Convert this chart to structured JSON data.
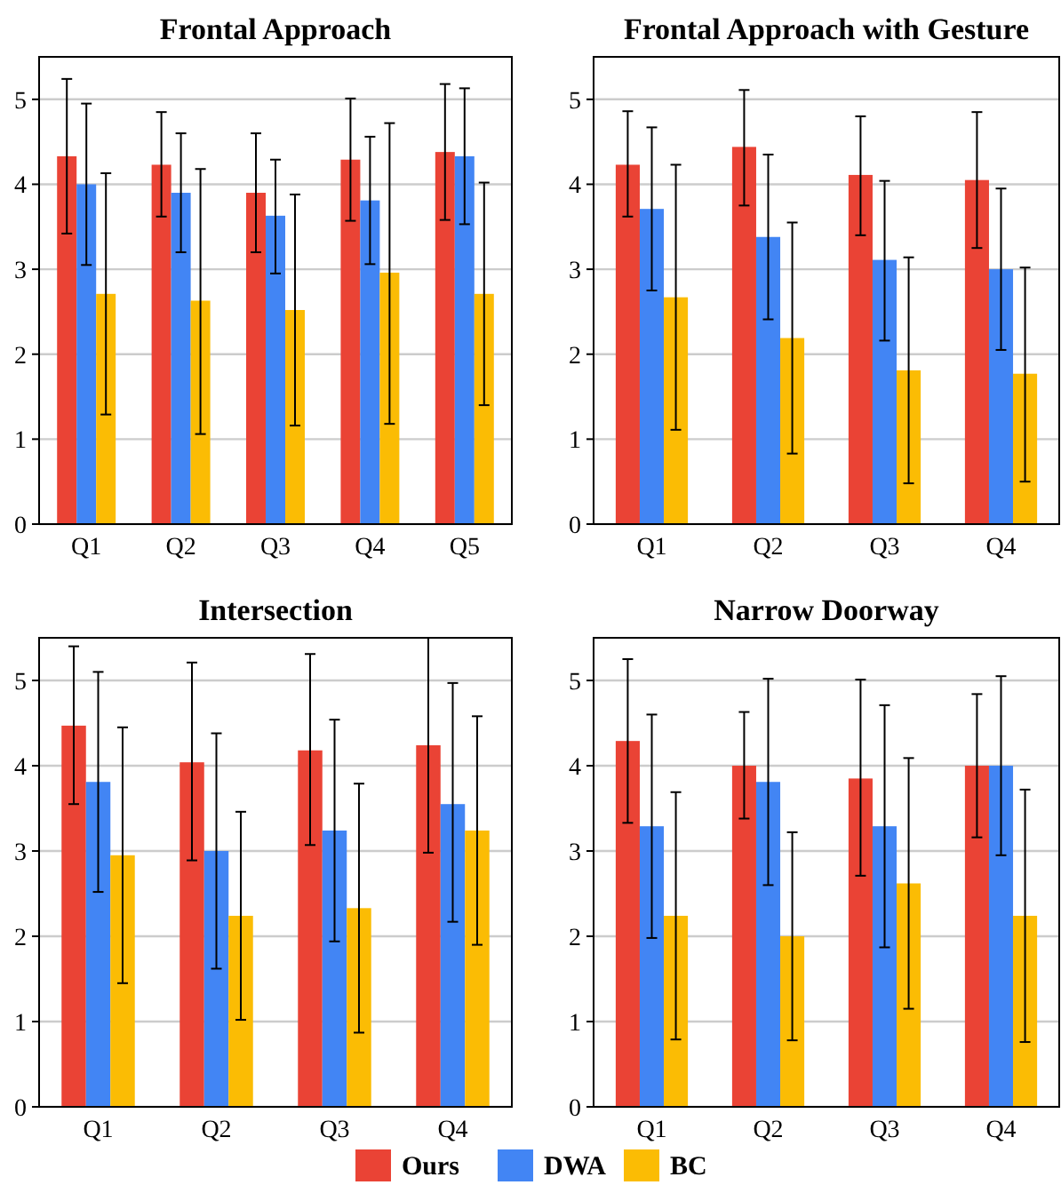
{
  "chart_data": [
    {
      "type": "bar",
      "title": "Frontal Approach",
      "categories": [
        "Q1",
        "Q2",
        "Q3",
        "Q4",
        "Q5"
      ],
      "ylim": [
        0,
        5.5
      ],
      "yticks": [
        0,
        1,
        2,
        3,
        4,
        5
      ],
      "grid": "y",
      "series": [
        {
          "color": "#ea4335",
          "values": [
            4.33,
            4.23,
            3.9,
            4.29,
            4.38
          ],
          "errors": [
            [
              3.42,
              5.24
            ],
            [
              3.62,
              4.85
            ],
            [
              3.2,
              4.6
            ],
            [
              3.57,
              5.01
            ],
            [
              3.58,
              5.18
            ]
          ]
        },
        {
          "color": "#4285f4",
          "values": [
            4.0,
            3.9,
            3.63,
            3.81,
            4.33
          ],
          "errors": [
            [
              3.05,
              4.95
            ],
            [
              3.2,
              4.6
            ],
            [
              2.95,
              4.29
            ],
            [
              3.06,
              4.56
            ],
            [
              3.53,
              5.13
            ]
          ]
        },
        {
          "color": "#fbbc04",
          "values": [
            2.71,
            2.63,
            2.52,
            2.96,
            2.71
          ],
          "errors": [
            [
              1.29,
              4.13
            ],
            [
              1.06,
              4.18
            ],
            [
              1.16,
              3.88
            ],
            [
              1.18,
              4.72
            ],
            [
              1.4,
              4.02
            ]
          ]
        }
      ]
    },
    {
      "type": "bar",
      "title": "Frontal Approach with Gesture",
      "categories": [
        "Q1",
        "Q2",
        "Q3",
        "Q4"
      ],
      "ylim": [
        0,
        5.5
      ],
      "yticks": [
        0,
        1,
        2,
        3,
        4,
        5
      ],
      "grid": "y",
      "series": [
        {
          "color": "#ea4335",
          "values": [
            4.23,
            4.44,
            4.11,
            4.05
          ],
          "errors": [
            [
              3.62,
              4.86
            ],
            [
              3.75,
              5.11
            ],
            [
              3.4,
              4.8
            ],
            [
              3.25,
              4.85
            ]
          ]
        },
        {
          "color": "#4285f4",
          "values": [
            3.71,
            3.38,
            3.11,
            3.0
          ],
          "errors": [
            [
              2.75,
              4.67
            ],
            [
              2.41,
              4.35
            ],
            [
              2.16,
              4.04
            ],
            [
              2.05,
              3.95
            ]
          ]
        },
        {
          "color": "#fbbc04",
          "values": [
            2.67,
            2.19,
            1.81,
            1.77
          ],
          "errors": [
            [
              1.11,
              4.23
            ],
            [
              0.83,
              3.55
            ],
            [
              0.48,
              3.14
            ],
            [
              0.5,
              3.02
            ]
          ]
        }
      ]
    },
    {
      "type": "bar",
      "title": "Intersection",
      "categories": [
        "Q1",
        "Q2",
        "Q3",
        "Q4"
      ],
      "ylim": [
        0,
        5.5
      ],
      "yticks": [
        0,
        1,
        2,
        3,
        4,
        5
      ],
      "grid": "y",
      "series": [
        {
          "color": "#ea4335",
          "values": [
            4.47,
            4.04,
            4.18,
            4.24
          ],
          "errors": [
            [
              3.55,
              5.4
            ],
            [
              2.89,
              5.21
            ],
            [
              3.07,
              5.31
            ],
            [
              2.98,
              5.5
            ]
          ]
        },
        {
          "color": "#4285f4",
          "values": [
            3.81,
            3.0,
            3.24,
            3.55
          ],
          "errors": [
            [
              2.52,
              5.1
            ],
            [
              1.62,
              4.38
            ],
            [
              1.94,
              4.54
            ],
            [
              2.17,
              4.97
            ]
          ]
        },
        {
          "color": "#fbbc04",
          "values": [
            2.95,
            2.24,
            2.33,
            3.24
          ],
          "errors": [
            [
              1.45,
              4.45
            ],
            [
              1.02,
              3.46
            ],
            [
              0.87,
              3.79
            ],
            [
              1.9,
              4.58
            ]
          ]
        }
      ]
    },
    {
      "type": "bar",
      "title": "Narrow Doorway",
      "categories": [
        "Q1",
        "Q2",
        "Q3",
        "Q4"
      ],
      "ylim": [
        0,
        5.5
      ],
      "yticks": [
        0,
        1,
        2,
        3,
        4,
        5
      ],
      "grid": "y",
      "legend": "bottom",
      "series": [
        {
          "name": "Ours",
          "color": "#ea4335",
          "values": [
            4.29,
            4.0,
            3.85,
            4.0
          ],
          "errors": [
            [
              3.33,
              5.25
            ],
            [
              3.38,
              4.63
            ],
            [
              2.71,
              5.01
            ],
            [
              3.16,
              4.84
            ]
          ]
        },
        {
          "name": "DWA",
          "color": "#4285f4",
          "values": [
            3.29,
            3.81,
            3.29,
            4.0
          ],
          "errors": [
            [
              1.98,
              4.6
            ],
            [
              2.6,
              5.02
            ],
            [
              1.87,
              4.71
            ],
            [
              2.95,
              5.05
            ]
          ]
        },
        {
          "name": "BC",
          "color": "#fbbc04",
          "values": [
            2.24,
            2.0,
            2.62,
            2.24
          ],
          "errors": [
            [
              0.79,
              3.69
            ],
            [
              0.78,
              3.22
            ],
            [
              1.15,
              4.09
            ],
            [
              0.76,
              3.72
            ]
          ]
        }
      ]
    }
  ]
}
